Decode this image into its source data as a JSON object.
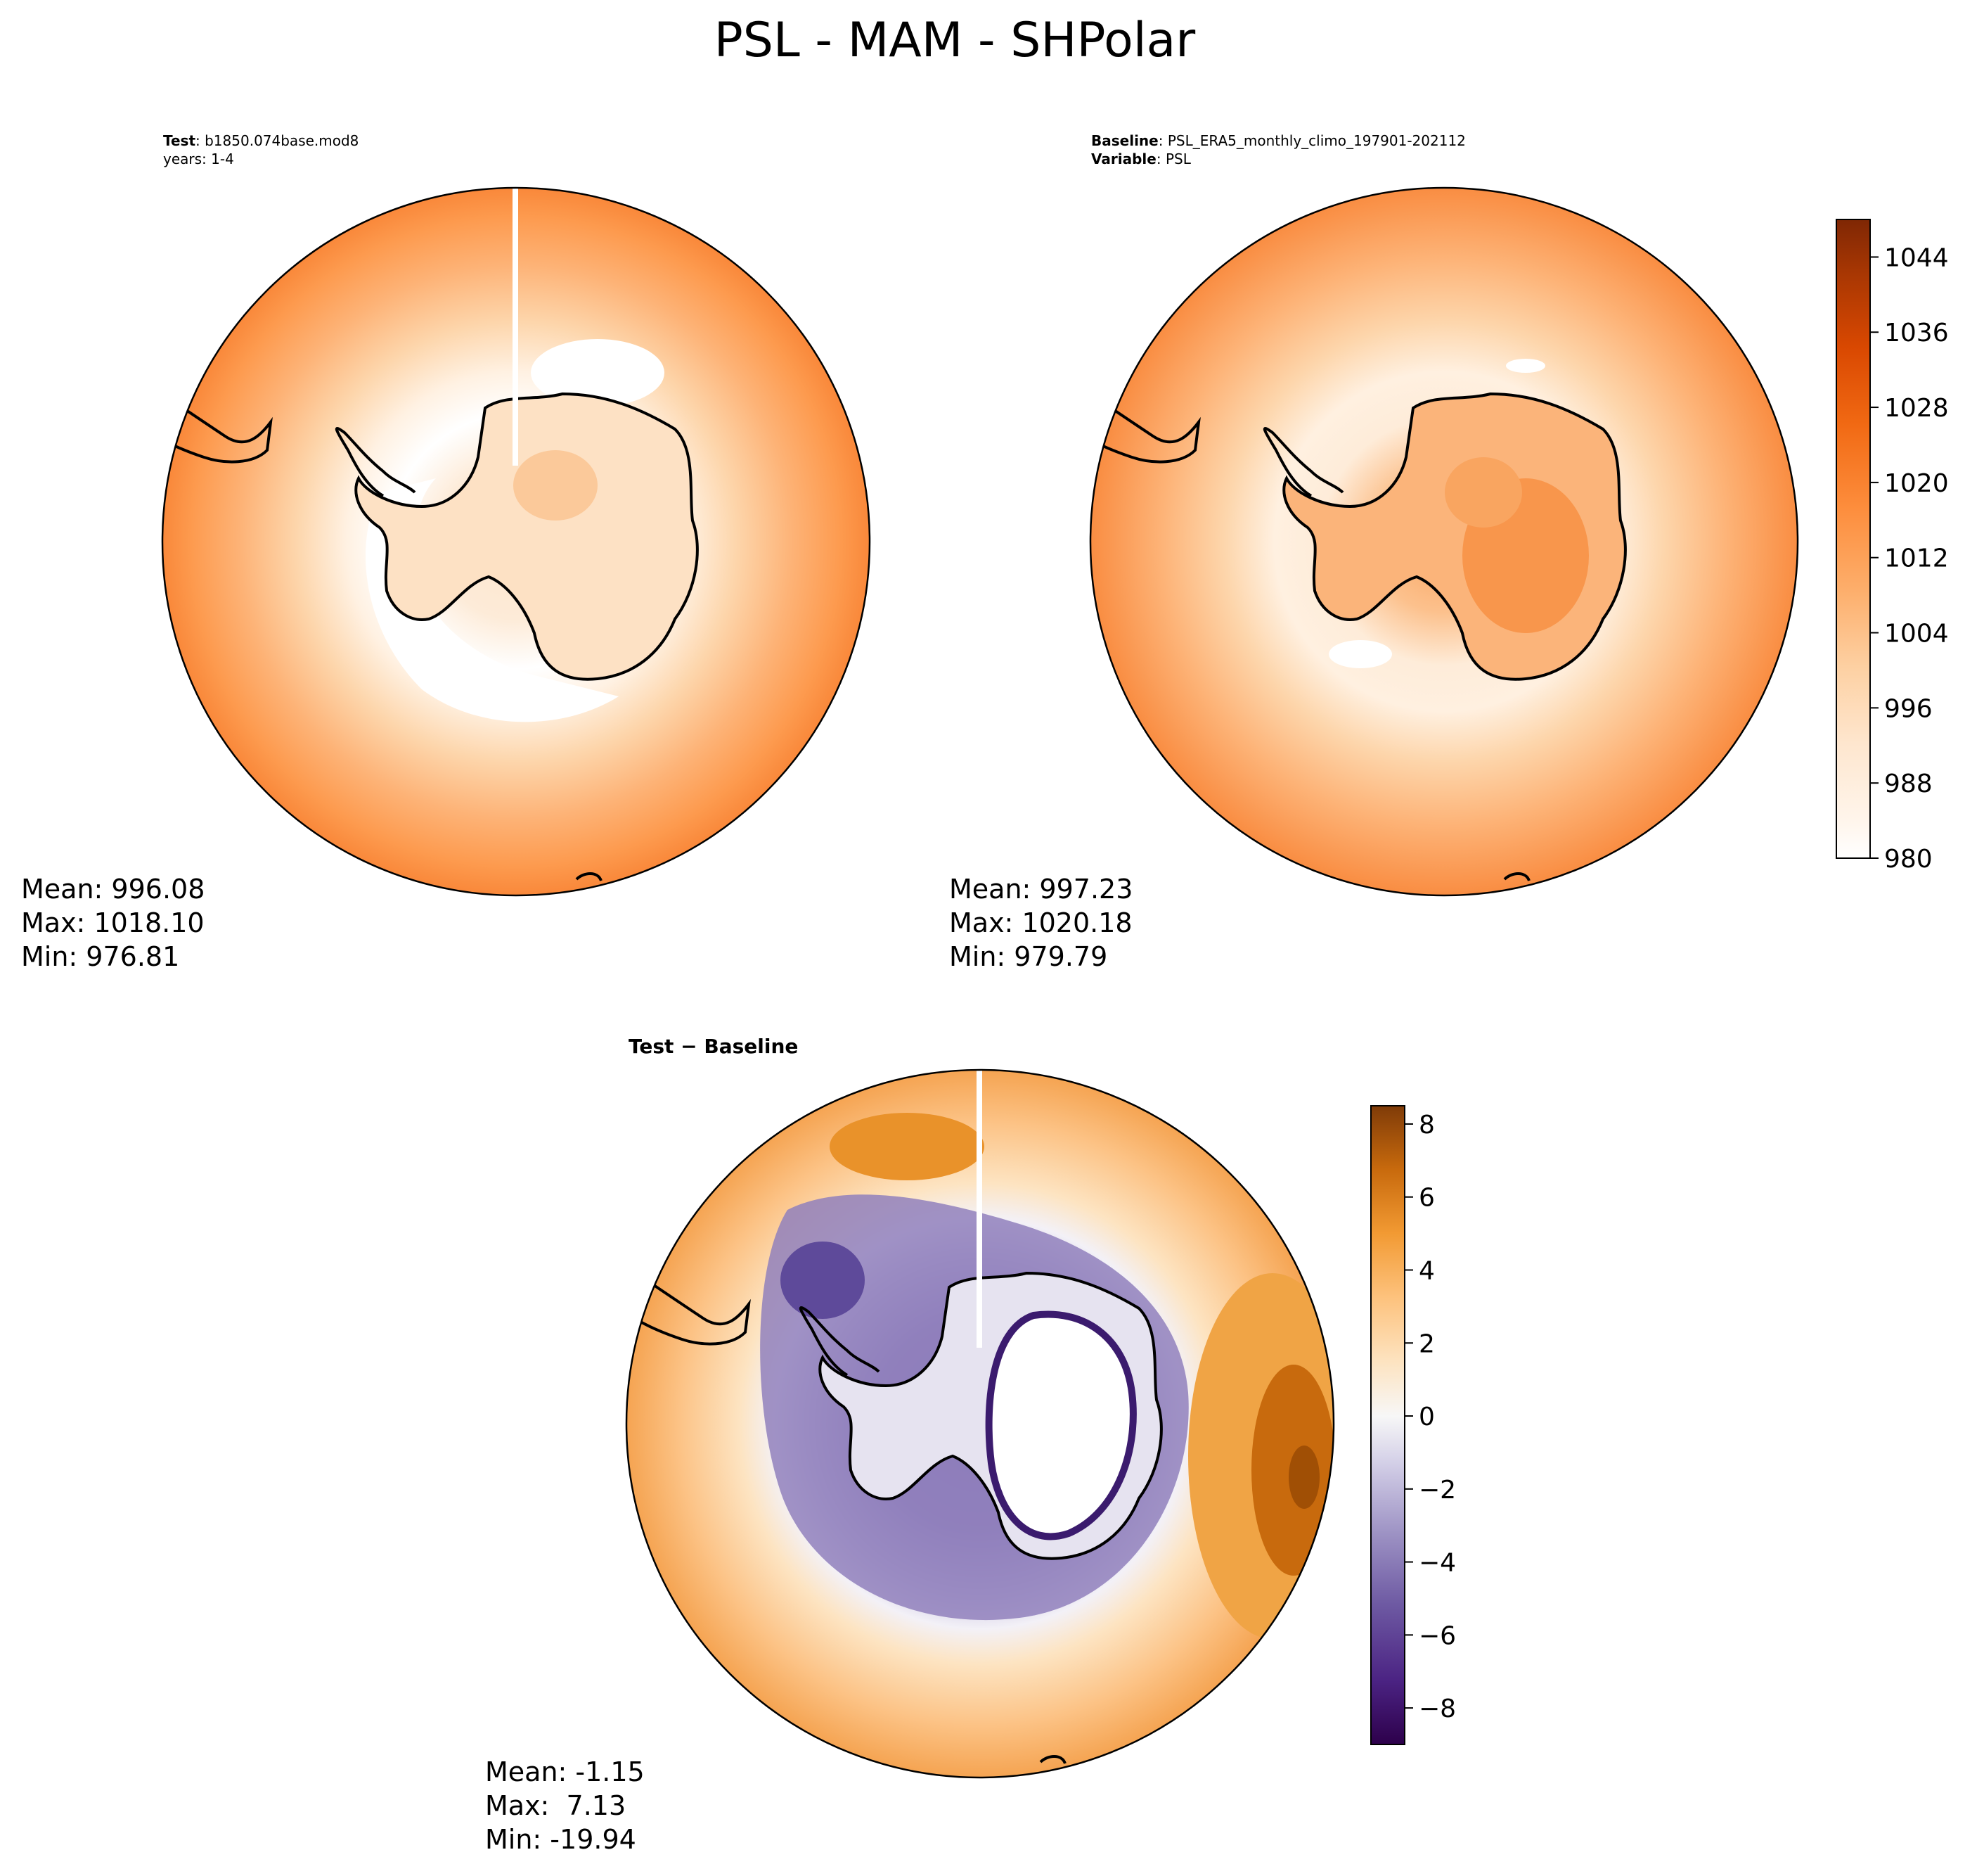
{
  "title": "PSL - MAM - SHPolar",
  "colors": {
    "orange_scale": [
      "#ffffff",
      "#fff5eb",
      "#fee6ce",
      "#fdd0a2",
      "#fdae6b",
      "#fd8d3c",
      "#f16913",
      "#d94801",
      "#a63603",
      "#7f2704"
    ],
    "diff_positive": [
      "#fdf2e3",
      "#fde0b8",
      "#fdc07a",
      "#f59c3c",
      "#e07a12",
      "#b35806",
      "#7f3b08"
    ],
    "diff_negative": [
      "#efedf5",
      "#d8d4ea",
      "#b9b2d8",
      "#9a8ec4",
      "#7b6cab",
      "#5c3f96",
      "#2d004b"
    ],
    "land_outline": "#000000"
  },
  "panels": {
    "test": {
      "label_bold": "Test",
      "label_text": ": b1850.074base.mod8",
      "line2": "years: 1-4",
      "stats": {
        "mean": "Mean: 996.08",
        "max": "Max: 1018.10",
        "min": "Min: 976.81"
      }
    },
    "baseline": {
      "label_bold": "Baseline",
      "label_text": ": PSL_ERA5_monthly_climo_197901-202112",
      "line2_bold": "Variable",
      "line2_text": ": PSL",
      "stats": {
        "mean": "Mean: 997.23",
        "max": "Max: 1020.18",
        "min": "Min: 979.79"
      }
    },
    "diff": {
      "label_bold": "Test − Baseline",
      "stats": {
        "mean": "Mean: -1.15",
        "max": "Max:  7.13",
        "min": "Min: -19.94"
      }
    }
  },
  "chart_data": [
    {
      "type": "heatmap",
      "projection": "south-polar-stereographic",
      "title": "Test: b1850.074base.mod8 (years: 1-4)",
      "variable": "PSL",
      "mean": 996.08,
      "max": 1018.1,
      "min": 976.81,
      "colorbar_range": [
        980,
        1048
      ]
    },
    {
      "type": "heatmap",
      "projection": "south-polar-stereographic",
      "title": "Baseline: PSL_ERA5_monthly_climo_197901-202112",
      "variable": "PSL",
      "mean": 997.23,
      "max": 1020.18,
      "min": 979.79,
      "colorbar_range": [
        980,
        1048
      ],
      "colorbar_ticks": [
        "980",
        "988",
        "996",
        "1004",
        "1012",
        "1020",
        "1028",
        "1036",
        "1044"
      ]
    },
    {
      "type": "heatmap",
      "projection": "south-polar-stereographic",
      "title": "Test − Baseline",
      "mean": -1.15,
      "max": 7.13,
      "min": -19.94,
      "colorbar_range": [
        -9,
        8.5
      ],
      "colorbar_ticks": [
        "−8",
        "−6",
        "−4",
        "−2",
        "0",
        "2",
        "4",
        "6",
        "8"
      ]
    }
  ]
}
